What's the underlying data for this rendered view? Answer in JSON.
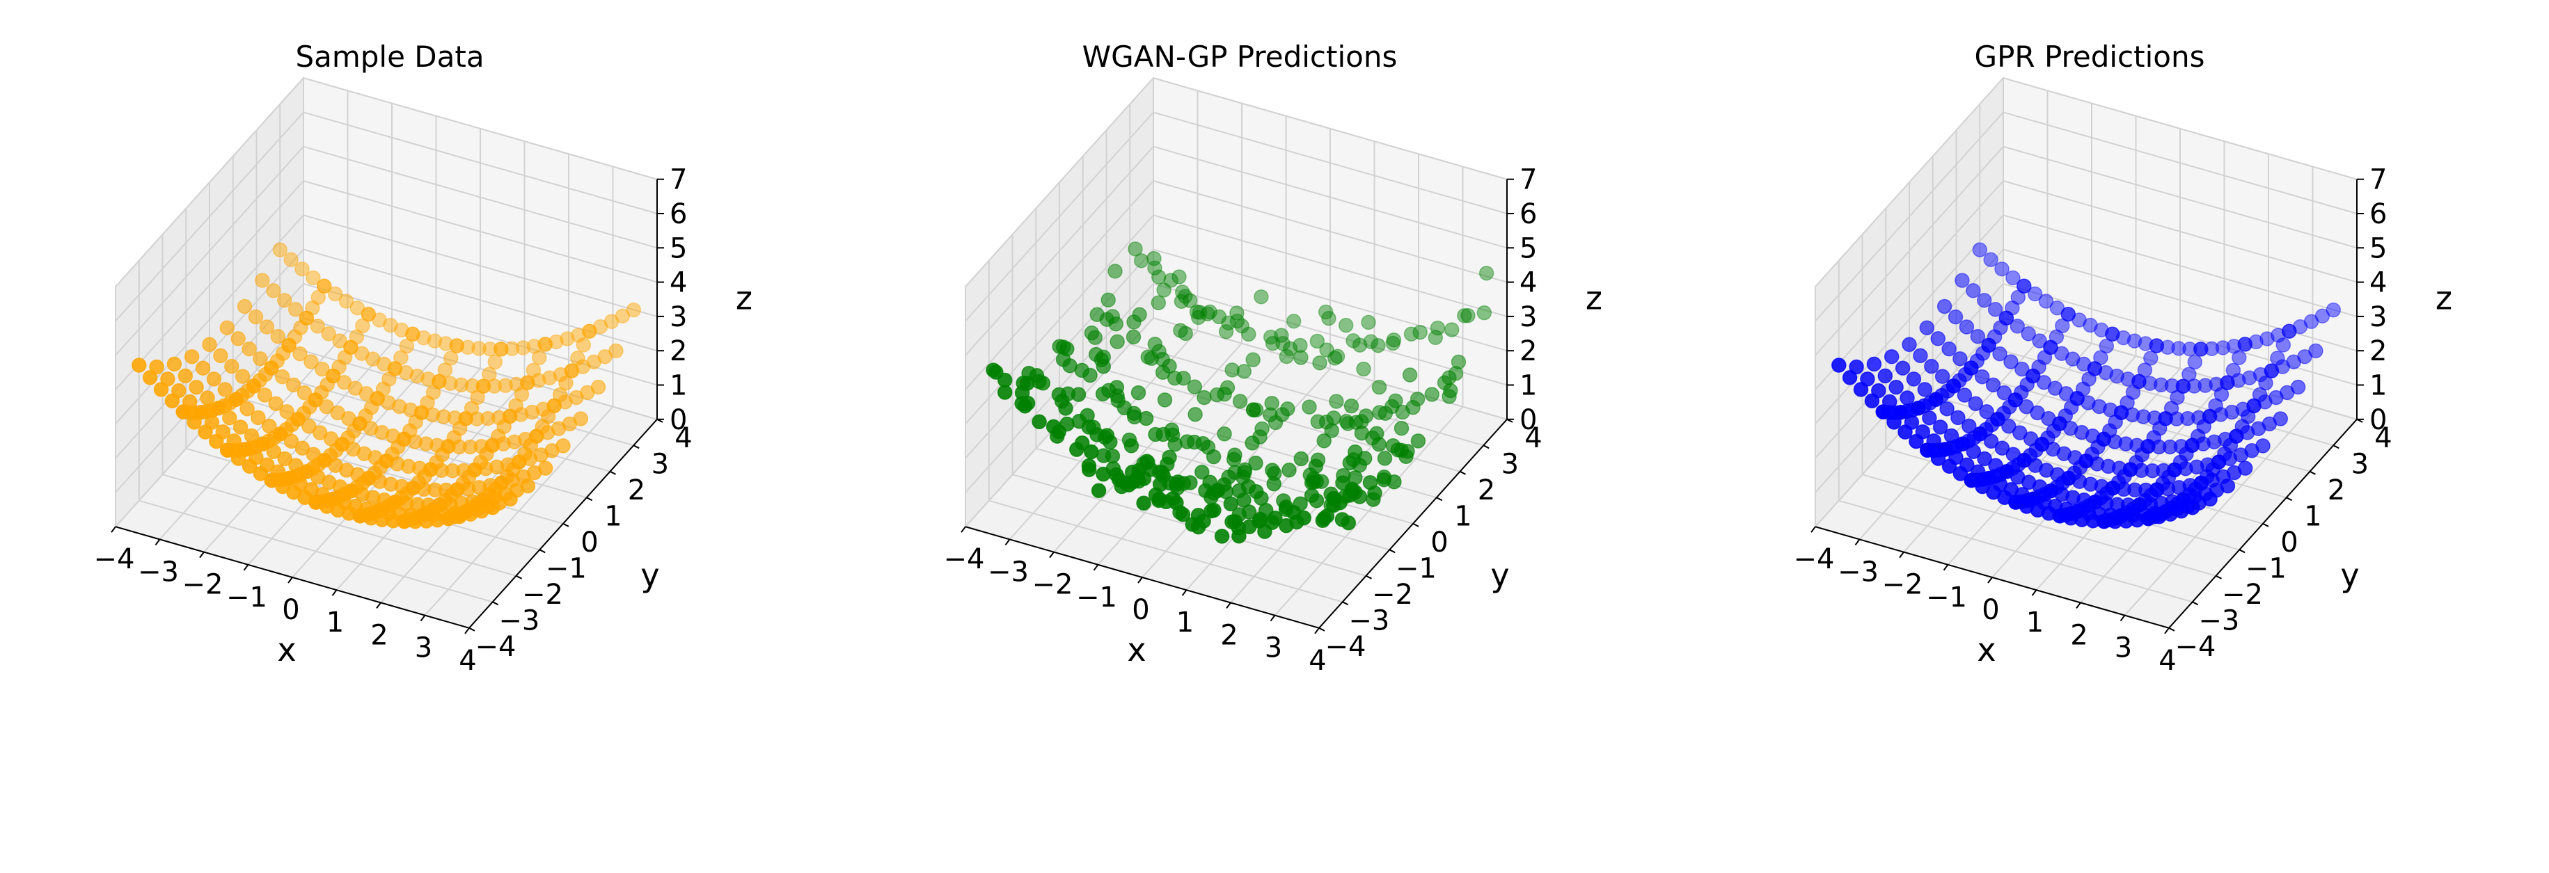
{
  "chart_data": [
    {
      "type": "scatter3d",
      "title": "Sample Data",
      "xlabel": "x",
      "ylabel": "y",
      "zlabel": "z",
      "xlim": [
        -4,
        4
      ],
      "ylim": [
        -4,
        4
      ],
      "zlim": [
        0,
        7
      ],
      "xticks": [
        "−4",
        "−3",
        "−2",
        "−1",
        "0",
        "1",
        "2",
        "3",
        "4"
      ],
      "yticks": [
        "−4",
        "−3",
        "−2",
        "−1",
        "0",
        "1",
        "2",
        "3",
        "4"
      ],
      "zticks": [
        "0",
        "1",
        "2",
        "3",
        "4",
        "5",
        "6",
        "7"
      ],
      "grid": true,
      "color": "#FFA500",
      "pattern": "sample"
    },
    {
      "type": "scatter3d",
      "title": "WGAN-GP Predictions",
      "xlabel": "x",
      "ylabel": "y",
      "zlabel": "z",
      "xlim": [
        -4,
        4
      ],
      "ylim": [
        -4,
        4
      ],
      "zlim": [
        0,
        7
      ],
      "xticks": [
        "−4",
        "−3",
        "−2",
        "−1",
        "0",
        "1",
        "2",
        "3",
        "4"
      ],
      "yticks": [
        "−4",
        "−3",
        "−2",
        "−1",
        "0",
        "1",
        "2",
        "3",
        "4"
      ],
      "zticks": [
        "0",
        "1",
        "2",
        "3",
        "4",
        "5",
        "6",
        "7"
      ],
      "grid": true,
      "color": "#008000",
      "pattern": "wgan"
    },
    {
      "type": "scatter3d",
      "title": "GPR Predictions",
      "xlabel": "x",
      "ylabel": "y",
      "zlabel": "z",
      "xlim": [
        -4,
        4
      ],
      "ylim": [
        -4,
        4
      ],
      "zlim": [
        0,
        7
      ],
      "xticks": [
        "−4",
        "−3",
        "−2",
        "−1",
        "0",
        "1",
        "2",
        "3",
        "4"
      ],
      "yticks": [
        "−4",
        "−3",
        "−2",
        "−1",
        "0",
        "1",
        "2",
        "3",
        "4"
      ],
      "zticks": [
        "0",
        "1",
        "2",
        "3",
        "4",
        "5",
        "6",
        "7"
      ],
      "grid": true,
      "color": "#0000FF",
      "pattern": "sample"
    }
  ]
}
